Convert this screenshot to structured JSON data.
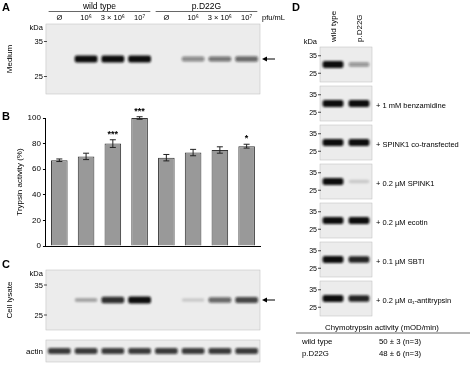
{
  "panel_a": {
    "label": "A",
    "row_label": "Medium",
    "kda_label": "kDa",
    "kda_ticks": [
      35,
      25
    ],
    "unit": "pfu/mL",
    "groups": [
      {
        "name": "wild type",
        "lanes": [
          "Ø",
          "10⁶",
          "3 × 10⁶",
          "10⁷"
        ],
        "bands": [
          0,
          1,
          1,
          1
        ]
      },
      {
        "name": "p.D22G",
        "lanes": [
          "Ø",
          "10⁶",
          "3 × 10⁶",
          "10⁷"
        ],
        "bands": [
          0,
          0.45,
          0.55,
          0.6
        ]
      }
    ]
  },
  "panel_b": {
    "label": "B"
  },
  "chart_data": {
    "type": "bar",
    "categories": [
      null,
      null,
      null,
      null,
      null,
      null,
      null,
      null
    ],
    "values": [
      67,
      70,
      80,
      100,
      69,
      73,
      75,
      78
    ],
    "errors": [
      1,
      2.5,
      3,
      1,
      2.5,
      2.5,
      2.5,
      1.5
    ],
    "significance": [
      null,
      null,
      "***",
      "***",
      null,
      null,
      null,
      "*"
    ],
    "ylabel": "Trypsin activity (%)",
    "ylim": [
      0,
      100
    ],
    "yticks": [
      0,
      20,
      40,
      60,
      80,
      100
    ],
    "color": "#999999",
    "grid": false,
    "tick_labels": "y"
  },
  "panel_c": {
    "label": "C",
    "row_label": "Cell lysate",
    "kda_label": "kDa",
    "kda_ticks": [
      35,
      25
    ],
    "bands": [
      0,
      0.3,
      0.85,
      1,
      0,
      0.15,
      0.6,
      0.75
    ],
    "control_label": "actin",
    "control_bands": [
      0.8,
      0.8,
      0.8,
      0.8,
      0.8,
      0.8,
      0.8,
      0.8
    ]
  },
  "panel_d": {
    "label": "D",
    "kda_label": "kDa",
    "kda_ticks": [
      35,
      25
    ],
    "lanes": [
      "wild type",
      "p.D22G"
    ],
    "rows": [
      {
        "bands": [
          1,
          0.4
        ]
      },
      {
        "condition": "+ 1 mM benzamidine",
        "bands": [
          1,
          1
        ]
      },
      {
        "condition": "+ SPINK1 co-transfected",
        "bands": [
          1,
          1
        ]
      },
      {
        "condition": "+ 0.2 µM SPINK1",
        "bands": [
          1,
          0.15
        ]
      },
      {
        "condition": "+ 0.2 µM ecotin",
        "bands": [
          1,
          1
        ]
      },
      {
        "condition": "+ 0.1 µM SBTI",
        "bands": [
          1,
          0.9
        ]
      },
      {
        "condition": "+ 0.2 µM α₁-antitrypsin",
        "bands": [
          1,
          0.9
        ]
      }
    ],
    "table": {
      "title": "Chymotrypsin activity (mOD/min)",
      "rows": [
        [
          "wild type",
          "50 ± 3 (n=3)"
        ],
        [
          "p.D22G",
          "48 ± 6 (n=3)"
        ]
      ]
    }
  }
}
